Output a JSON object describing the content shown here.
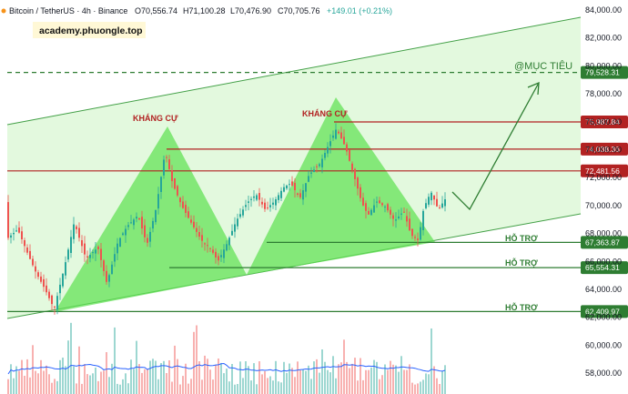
{
  "header": {
    "symbol": "Bitcoin / TetherUS · 4h · Binance",
    "open": "O70,556.74",
    "high": "H71,100.28",
    "low": "L70,476.90",
    "close": "C70,705.76",
    "change": "+149.01 (+0.21%)"
  },
  "watermark": "academy.phuongle.top",
  "annotations": {
    "resistance_1": "KHÁNG CỰ",
    "resistance_2": "KHÁNG CỰ",
    "support_1": "HỖ TRỢ",
    "support_2": "HỖ TRỢ",
    "support_3": "HỖ TRỢ",
    "target": "@MỤC TIÊU"
  },
  "price_axis": {
    "ticks": [
      "84,000.00",
      "82,000.00",
      "80,000.00",
      "78,000.00",
      "76,000.00",
      "74,000.00",
      "72,000.00",
      "70,000.00",
      "68,000.00",
      "66,000.00",
      "64,000.00",
      "62,000.00",
      "60,000.00",
      "58,000.00"
    ]
  },
  "levels": [
    {
      "label": "79,528.31",
      "value": 79528.31,
      "color": "#2e7d32"
    },
    {
      "label": "75,987.84",
      "value": 75987.84,
      "color": "#b22222"
    },
    {
      "label": "74,038.36",
      "value": 74038.36,
      "color": "#b22222"
    },
    {
      "label": "72,481.56",
      "value": 72481.56,
      "color": "#b22222"
    },
    {
      "label": "67,363.87",
      "value": 67363.87,
      "color": "#2e7d32"
    },
    {
      "label": "65,554.31",
      "value": 65554.31,
      "color": "#2e7d32"
    },
    {
      "label": "62,409.97",
      "value": 62409.97,
      "color": "#2e7d32"
    }
  ],
  "colors": {
    "up": "#26a69a",
    "down": "#ef5350",
    "resistance": "#b22222",
    "support": "#2e7d32",
    "channel_fill": "#c8f5c2",
    "pattern_fill": "#6fe265",
    "volume_ma": "#2962ff"
  }
}
